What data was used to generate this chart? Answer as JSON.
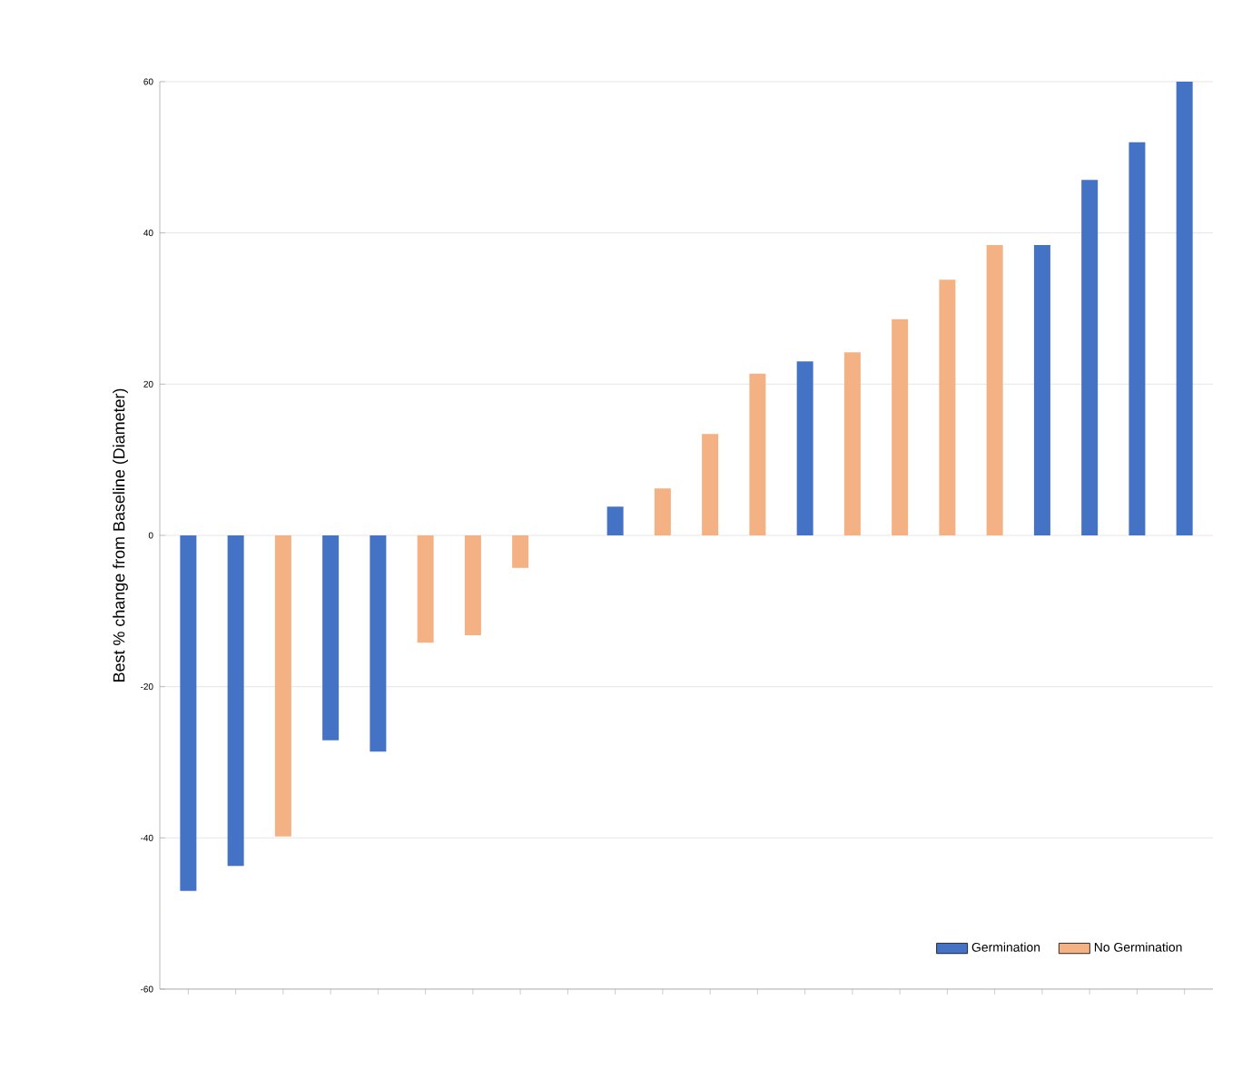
{
  "chart_data": {
    "type": "bar",
    "ylabel": "Best % change from Baseline (Diameter)",
    "categories": [
      null,
      null,
      null,
      null,
      null,
      null,
      null,
      null,
      null,
      null,
      null,
      null,
      null,
      null,
      null,
      null,
      null,
      null,
      null,
      null,
      null,
      null
    ],
    "series": [
      {
        "name": "Germination",
        "color": "#4472c4",
        "values": [
          -47,
          -43.7,
          null,
          -27.1,
          -28.6,
          null,
          null,
          null,
          null,
          3.8,
          null,
          null,
          null,
          23,
          null,
          null,
          null,
          null,
          38.4,
          47,
          52,
          60
        ]
      },
      {
        "name": "No Germination",
        "color": "#f4b183",
        "values": [
          null,
          null,
          -39.8,
          null,
          null,
          -14.2,
          -13.2,
          -4.3,
          null,
          null,
          6.2,
          13.4,
          21.4,
          null,
          24.2,
          28.6,
          33.8,
          38.4,
          null,
          null,
          null,
          null
        ]
      }
    ],
    "ylim": [
      -60,
      60
    ],
    "yticks": [
      -60,
      -40,
      -20,
      0,
      20,
      40,
      60
    ],
    "grid": "y",
    "legend": "bottom right",
    "tick_labels": "y"
  }
}
